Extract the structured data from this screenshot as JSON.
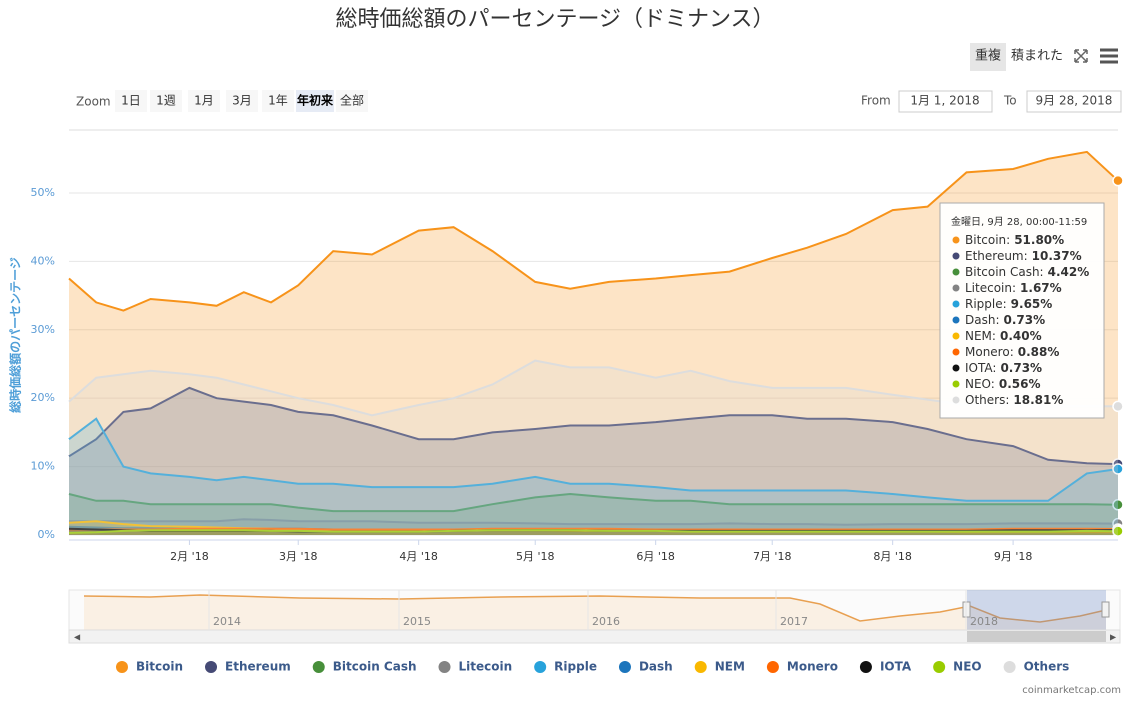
{
  "chart_data": {
    "type": "area",
    "title": "総時価総額のパーセンテージ（ドミナンス）",
    "y_title": "総時価総額のパーセンテージ",
    "x": [
      "2018-01-01",
      "2018-01-08",
      "2018-01-15",
      "2018-01-22",
      "2018-02-01",
      "2018-02-08",
      "2018-02-15",
      "2018-02-22",
      "2018-03-01",
      "2018-03-10",
      "2018-03-20",
      "2018-04-01",
      "2018-04-10",
      "2018-04-20",
      "2018-05-01",
      "2018-05-10",
      "2018-05-20",
      "2018-06-01",
      "2018-06-10",
      "2018-06-20",
      "2018-07-01",
      "2018-07-10",
      "2018-07-20",
      "2018-08-01",
      "2018-08-10",
      "2018-08-20",
      "2018-09-01",
      "2018-09-10",
      "2018-09-20",
      "2018-09-28"
    ],
    "xlim": [
      "2018-01-01",
      "2018-09-28"
    ],
    "xticks": [
      {
        "value": "2018-02-01",
        "label": "2月 '18"
      },
      {
        "value": "2018-03-01",
        "label": "3月 '18"
      },
      {
        "value": "2018-04-01",
        "label": "4月 '18"
      },
      {
        "value": "2018-05-01",
        "label": "5月 '18"
      },
      {
        "value": "2018-06-01",
        "label": "6月 '18"
      },
      {
        "value": "2018-07-01",
        "label": "7月 '18"
      },
      {
        "value": "2018-08-01",
        "label": "8月 '18"
      },
      {
        "value": "2018-09-01",
        "label": "9月 '18"
      }
    ],
    "ylim": [
      0,
      59
    ],
    "yticks": [
      {
        "value": 0,
        "label": "0%"
      },
      {
        "value": 10,
        "label": "10%"
      },
      {
        "value": 20,
        "label": "20%"
      },
      {
        "value": 30,
        "label": "30%"
      },
      {
        "value": 40,
        "label": "40%"
      },
      {
        "value": 50,
        "label": "50%"
      }
    ],
    "grid": true,
    "series": [
      {
        "name": "Bitcoin",
        "color": "#f7931a",
        "values": [
          37.5,
          34.0,
          32.8,
          34.5,
          34.0,
          33.5,
          35.5,
          34.0,
          36.5,
          41.5,
          41.0,
          44.5,
          45.0,
          41.5,
          37.0,
          36.0,
          37.0,
          37.5,
          38.0,
          38.5,
          40.5,
          42.0,
          44.0,
          47.5,
          48.0,
          53.0,
          53.5,
          55.0,
          56.0,
          51.8
        ]
      },
      {
        "name": "Ethereum",
        "color": "#454a75",
        "values": [
          11.5,
          14.0,
          18.0,
          18.5,
          21.5,
          20.0,
          19.5,
          19.0,
          18.0,
          17.5,
          16.0,
          14.0,
          14.0,
          15.0,
          15.5,
          16.0,
          16.0,
          16.5,
          17.0,
          17.5,
          17.5,
          17.0,
          17.0,
          16.5,
          15.5,
          14.0,
          13.0,
          11.0,
          10.5,
          10.37
        ]
      },
      {
        "name": "Bitcoin Cash",
        "color": "#478f3a",
        "values": [
          6.0,
          5.0,
          5.0,
          4.5,
          4.5,
          4.5,
          4.5,
          4.5,
          4.0,
          3.5,
          3.5,
          3.5,
          3.5,
          4.5,
          5.5,
          6.0,
          5.5,
          5.0,
          5.0,
          4.5,
          4.5,
          4.5,
          4.5,
          4.5,
          4.5,
          4.5,
          4.5,
          4.5,
          4.5,
          4.42
        ]
      },
      {
        "name": "Litecoin",
        "color": "#838383",
        "values": [
          2.0,
          2.0,
          2.0,
          2.0,
          2.0,
          2.0,
          2.3,
          2.2,
          2.0,
          2.0,
          2.0,
          1.8,
          1.8,
          1.8,
          1.7,
          1.6,
          1.6,
          1.6,
          1.6,
          1.7,
          1.6,
          1.6,
          1.5,
          1.6,
          1.6,
          1.6,
          1.7,
          1.7,
          1.7,
          1.67
        ]
      },
      {
        "name": "Ripple",
        "color": "#27a2db",
        "values": [
          14.0,
          17.0,
          10.0,
          9.0,
          8.5,
          8.0,
          8.5,
          8.0,
          7.5,
          7.5,
          7.0,
          7.0,
          7.0,
          7.5,
          8.5,
          7.5,
          7.5,
          7.0,
          6.5,
          6.5,
          6.5,
          6.5,
          6.5,
          6.0,
          5.5,
          5.0,
          5.0,
          5.0,
          9.0,
          9.65
        ]
      },
      {
        "name": "Dash",
        "color": "#1c75bc",
        "values": [
          1.2,
          1.1,
          1.0,
          1.0,
          0.9,
          0.9,
          0.9,
          0.9,
          0.9,
          0.8,
          0.8,
          0.8,
          0.8,
          0.8,
          0.8,
          0.8,
          0.8,
          0.8,
          0.8,
          0.7,
          0.7,
          0.7,
          0.7,
          0.7,
          0.7,
          0.7,
          0.7,
          0.7,
          0.7,
          0.73
        ]
      },
      {
        "name": "NEM",
        "color": "#f9b800",
        "values": [
          1.8,
          2.0,
          1.6,
          1.3,
          1.2,
          1.1,
          1.0,
          0.9,
          0.8,
          0.7,
          0.7,
          0.6,
          0.6,
          0.7,
          0.7,
          0.6,
          0.6,
          0.6,
          0.5,
          0.5,
          0.5,
          0.5,
          0.5,
          0.5,
          0.5,
          0.4,
          0.4,
          0.4,
          0.4,
          0.4
        ]
      },
      {
        "name": "Monero",
        "color": "#ff6600",
        "values": [
          0.8,
          0.8,
          0.8,
          0.8,
          0.9,
          0.9,
          0.9,
          0.9,
          0.9,
          0.8,
          0.8,
          0.8,
          0.8,
          0.9,
          0.9,
          0.9,
          0.9,
          0.8,
          0.8,
          0.8,
          0.8,
          0.8,
          0.8,
          0.8,
          0.8,
          0.8,
          0.9,
          0.9,
          0.9,
          0.88
        ]
      },
      {
        "name": "IOTA",
        "color": "#111111",
        "values": [
          0.9,
          0.8,
          0.7,
          0.6,
          0.6,
          0.6,
          0.6,
          0.6,
          0.5,
          0.5,
          0.5,
          0.5,
          0.6,
          0.7,
          0.7,
          0.7,
          0.6,
          0.6,
          0.6,
          0.6,
          0.6,
          0.6,
          0.6,
          0.6,
          0.6,
          0.6,
          0.7,
          0.7,
          0.7,
          0.73
        ]
      },
      {
        "name": "NEO",
        "color": "#99cc00",
        "values": [
          0.3,
          0.4,
          0.6,
          0.7,
          0.7,
          0.7,
          0.7,
          0.6,
          0.6,
          0.5,
          0.5,
          0.5,
          0.6,
          0.7,
          0.7,
          0.7,
          0.6,
          0.6,
          0.5,
          0.5,
          0.5,
          0.5,
          0.5,
          0.5,
          0.5,
          0.5,
          0.5,
          0.5,
          0.6,
          0.56
        ]
      },
      {
        "name": "Others",
        "color": "#dddddd",
        "values": [
          19.5,
          23.0,
          23.5,
          24.0,
          23.5,
          23.0,
          22.0,
          21.0,
          20.0,
          19.0,
          17.5,
          19.0,
          20.0,
          22.0,
          25.5,
          24.5,
          24.5,
          23.0,
          24.0,
          22.5,
          21.5,
          21.5,
          21.5,
          20.5,
          19.8,
          19.0,
          19.0,
          18.8,
          18.8,
          18.81
        ]
      }
    ],
    "tooltip": {
      "header": "金曜日, 9月 28, 00:00-11:59",
      "items": [
        {
          "name": "Bitcoin:",
          "value": "51.80%"
        },
        {
          "name": "Ethereum:",
          "value": "10.37%"
        },
        {
          "name": "Bitcoin Cash:",
          "value": "4.42%"
        },
        {
          "name": "Litecoin:",
          "value": "1.67%"
        },
        {
          "name": "Ripple:",
          "value": "9.65%"
        },
        {
          "name": "Dash:",
          "value": "0.73%"
        },
        {
          "name": "NEM:",
          "value": "0.40%"
        },
        {
          "name": "Monero:",
          "value": "0.88%"
        },
        {
          "name": "IOTA:",
          "value": "0.73%"
        },
        {
          "name": "NEO:",
          "value": "0.56%"
        },
        {
          "name": "Others:",
          "value": "18.81%"
        }
      ]
    },
    "navigator": {
      "labels": [
        "2014",
        "2015",
        "2016",
        "2017",
        "2018"
      ]
    },
    "credit": "coinmarketcap.com"
  },
  "controls": {
    "view_buttons": [
      "重複",
      "積まれた"
    ],
    "zoom_label": "Zoom",
    "zoom_buttons": [
      "1日",
      "1週",
      "1月",
      "3月",
      "1年",
      "年初来",
      "全部"
    ],
    "zoom_selected": 5,
    "from_label": "From",
    "from": "1月 1, 2018",
    "to_label": "To",
    "to": "9月 28, 2018"
  }
}
